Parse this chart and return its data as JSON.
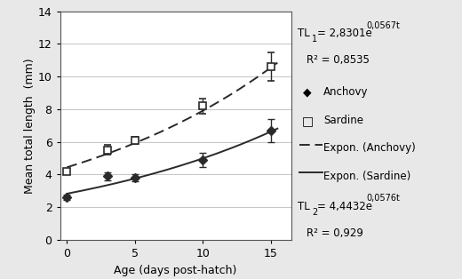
{
  "anchovy_x": [
    0,
    3,
    5,
    10,
    15
  ],
  "anchovy_y": [
    2.6,
    3.9,
    3.8,
    4.9,
    6.7
  ],
  "anchovy_yerr": [
    0.15,
    0.25,
    0.2,
    0.45,
    0.7
  ],
  "sardine_x": [
    0,
    3,
    5,
    10,
    15
  ],
  "sardine_y": [
    4.2,
    5.5,
    6.1,
    8.2,
    10.6
  ],
  "sardine_yerr": [
    0.15,
    0.3,
    0.2,
    0.45,
    0.85
  ],
  "sardine_a": 2.8301,
  "sardine_b": 0.0567,
  "anchovy_a": 4.4432,
  "anchovy_b": 0.0576,
  "xlabel": "Age (days post-hatch)",
  "ylabel": "Mean total length  (mm)",
  "ylim": [
    0,
    14
  ],
  "xlim": [
    -0.5,
    16.5
  ],
  "yticks": [
    0,
    2,
    4,
    6,
    8,
    10,
    12,
    14
  ],
  "xticks": [
    0,
    5,
    10,
    15
  ],
  "bg_color": "#e8e8e8",
  "plot_bg": "#ffffff",
  "line_color": "#2a2a2a"
}
